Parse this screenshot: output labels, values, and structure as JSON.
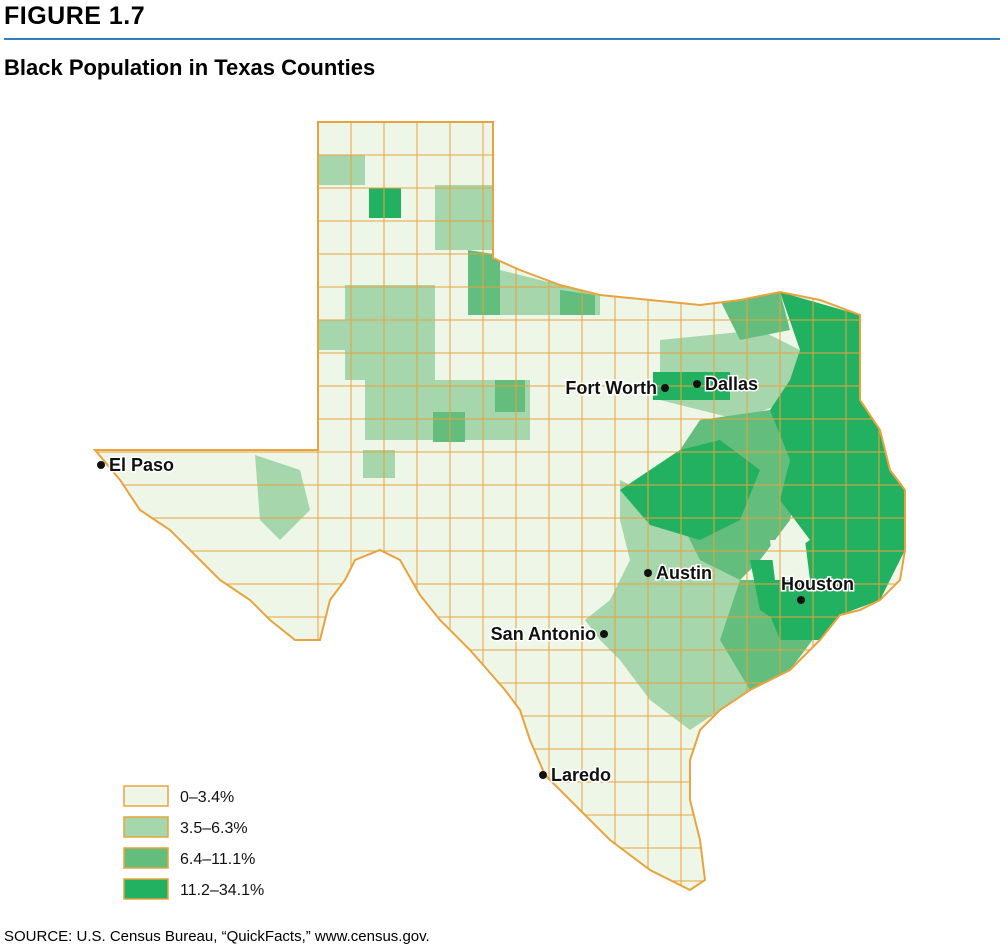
{
  "header": {
    "figure_label": "FIGURE 1.7",
    "title": "Black Population in Texas Counties"
  },
  "legend": [
    {
      "label": "0–3.4%",
      "color": "#eef6e8"
    },
    {
      "label": "3.5–6.3%",
      "color": "#a6d6ac"
    },
    {
      "label": "6.4–11.1%",
      "color": "#63bd7c"
    },
    {
      "label": "11.2–34.1%",
      "color": "#22b061"
    }
  ],
  "cities": [
    "El Paso",
    "Fort Worth",
    "Dallas",
    "Austin",
    "Houston",
    "San Antonio",
    "Laredo"
  ],
  "source": "SOURCE: U.S. Census Bureau, “QuickFacts,” www.census.gov."
}
